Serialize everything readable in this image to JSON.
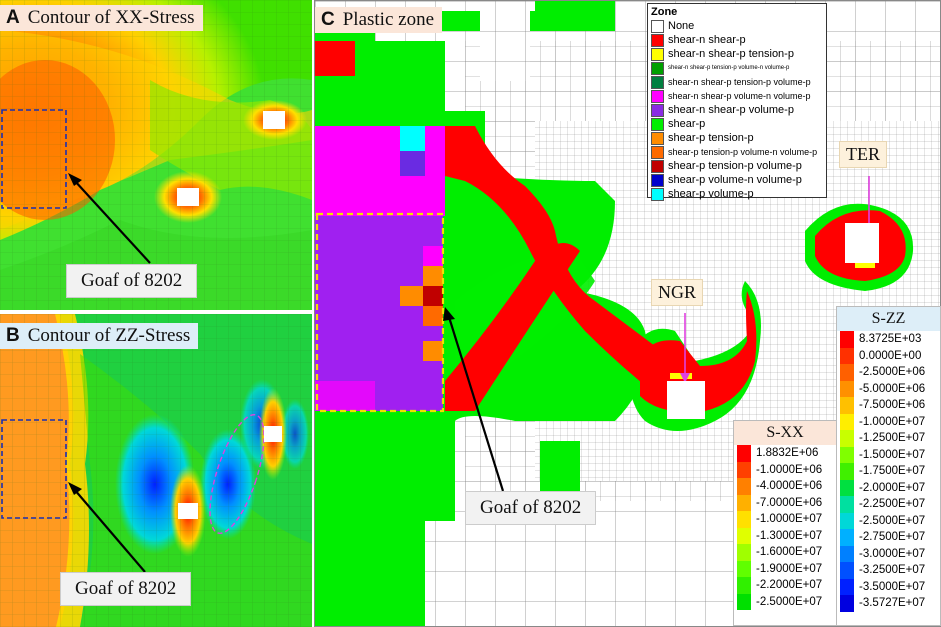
{
  "panels": {
    "a": {
      "letter": "A",
      "title": "Contour of XX-Stress",
      "callout": "Goaf of 8202"
    },
    "b": {
      "letter": "B",
      "title": "Contour of ZZ-Stress",
      "callout": "Goaf of 8202"
    },
    "c": {
      "letter": "C",
      "title": "Plastic zone",
      "callout": "Goaf of 8202",
      "tag_ngr": "NGR",
      "tag_ter": "TER"
    }
  },
  "zone_legend": {
    "title": "Zone",
    "items": [
      {
        "label": "None",
        "color": "#ffffff"
      },
      {
        "label": "shear-n shear-p",
        "color": "#ff0000"
      },
      {
        "label": "shear-n shear-p tension-p",
        "color": "#ffff00"
      },
      {
        "label": "shear-n shear-p tension-p volume-n volume-p",
        "color": "#00a000"
      },
      {
        "label": "shear-n shear-p tension-p volume-p",
        "color": "#007f3f"
      },
      {
        "label": "shear-n shear-p volume-n volume-p",
        "color": "#ff00ff"
      },
      {
        "label": "shear-n shear-p volume-p",
        "color": "#8a2be2"
      },
      {
        "label": "shear-p",
        "color": "#00ee00"
      },
      {
        "label": "shear-p tension-p",
        "color": "#ff8c00"
      },
      {
        "label": "shear-p tension-p volume-n volume-p",
        "color": "#ff6a00"
      },
      {
        "label": "shear-p tension-p volume-p",
        "color": "#c00000"
      },
      {
        "label": "shear-p volume-n volume-p",
        "color": "#0000cc"
      },
      {
        "label": "shear-p volume-p",
        "color": "#00ffff"
      }
    ]
  },
  "sxx_scale": {
    "title": "S-XX",
    "items": [
      {
        "label": "1.8832E+06",
        "color": "#ff0000"
      },
      {
        "label": "-1.0000E+06",
        "color": "#ff4000"
      },
      {
        "label": "-4.0000E+06",
        "color": "#ff8000"
      },
      {
        "label": "-7.0000E+06",
        "color": "#ffb000"
      },
      {
        "label": "-1.0000E+07",
        "color": "#ffe000"
      },
      {
        "label": "-1.3000E+07",
        "color": "#e0ff00"
      },
      {
        "label": "-1.6000E+07",
        "color": "#a0ff00"
      },
      {
        "label": "-1.9000E+07",
        "color": "#60ff00"
      },
      {
        "label": "-2.2000E+07",
        "color": "#30f000"
      },
      {
        "label": "-2.5000E+07",
        "color": "#00e000"
      }
    ]
  },
  "szz_scale": {
    "title": "S-ZZ",
    "items": [
      {
        "label": "8.3725E+03",
        "color": "#ff0000"
      },
      {
        "label": "0.0000E+00",
        "color": "#ff3000"
      },
      {
        "label": "-2.5000E+06",
        "color": "#ff6000"
      },
      {
        "label": "-5.0000E+06",
        "color": "#ff9000"
      },
      {
        "label": "-7.5000E+06",
        "color": "#ffc000"
      },
      {
        "label": "-1.0000E+07",
        "color": "#ffee00"
      },
      {
        "label": "-1.2500E+07",
        "color": "#c8ff00"
      },
      {
        "label": "-1.5000E+07",
        "color": "#80ff00"
      },
      {
        "label": "-1.7500E+07",
        "color": "#40f000"
      },
      {
        "label": "-2.0000E+07",
        "color": "#00e040"
      },
      {
        "label": "-2.2500E+07",
        "color": "#00e0a0"
      },
      {
        "label": "-2.5000E+07",
        "color": "#00d8d8"
      },
      {
        "label": "-2.7500E+07",
        "color": "#00b0ff"
      },
      {
        "label": "-3.0000E+07",
        "color": "#0080ff"
      },
      {
        "label": "-3.2500E+07",
        "color": "#0050ff"
      },
      {
        "label": "-3.5000E+07",
        "color": "#0020ff"
      },
      {
        "label": "-3.5727E+07",
        "color": "#0000e0"
      }
    ]
  }
}
